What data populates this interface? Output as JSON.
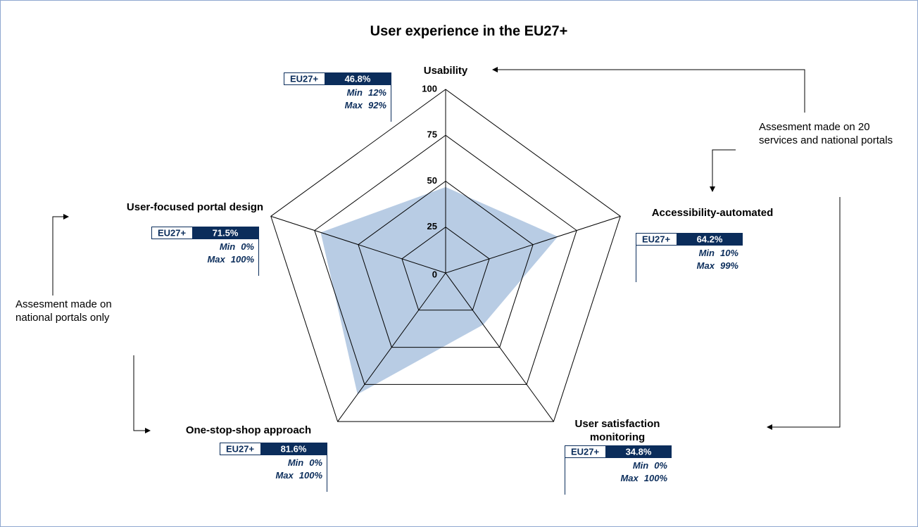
{
  "chart_data": {
    "type": "radar",
    "title": "User experience in the EU27+",
    "categories": [
      "Usability",
      "Accessibility-automated",
      "User satisfaction monitoring",
      "One-stop-shop approach",
      "User-focused portal design"
    ],
    "series_name": "EU27+",
    "color": "#b8cce4",
    "values": [
      46.8,
      64.2,
      34.8,
      81.6,
      71.5
    ],
    "value_labels": [
      "46.8%",
      "64.2%",
      "34.8%",
      "81.6%",
      "71.5%"
    ],
    "min_label": "Min",
    "max_label": "Max",
    "min": [
      12,
      10,
      0,
      0,
      0
    ],
    "min_labels": [
      "12%",
      "10%",
      "0%",
      "0%",
      "0%"
    ],
    "max": [
      92,
      99,
      100,
      100,
      100
    ],
    "max_labels": [
      "92%",
      "99%",
      "100%",
      "100%",
      "100%"
    ],
    "rlim": [
      0,
      100
    ],
    "rticks": [
      0,
      25,
      50,
      75,
      100
    ],
    "annotations": [
      "Assesment made on 20 services and national portals",
      "Assesment made on national portals only"
    ]
  }
}
